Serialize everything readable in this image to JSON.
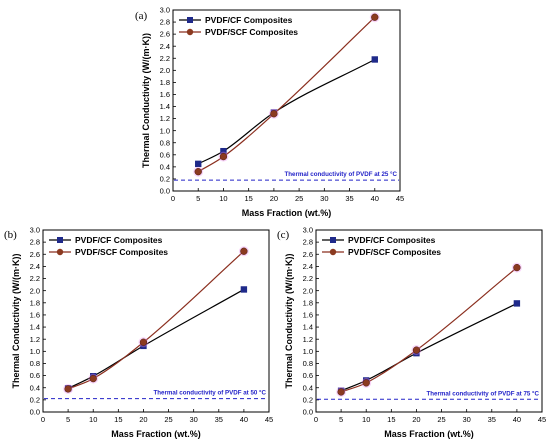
{
  "colors": {
    "cf": "#000000",
    "cf_marker": "#1f2a8a",
    "scf": "#8b2f1f",
    "scf_marker": "#8b3a20",
    "reference": "#2323c8",
    "error_glow": "#ee88ee"
  },
  "chart_data": [
    {
      "type": "line",
      "panel_label": "(a)",
      "xlabel": "Mass Fraction (wt.%)",
      "ylabel": "Thermal Conductivity (W/(m·K))",
      "xlim": [
        0,
        45
      ],
      "ylim": [
        0.0,
        3.0
      ],
      "x_ticks": [
        0,
        5,
        10,
        15,
        20,
        25,
        30,
        35,
        40,
        45
      ],
      "y_ticks": [
        0.0,
        0.2,
        0.4,
        0.6,
        0.8,
        1.0,
        1.2,
        1.4,
        1.6,
        1.8,
        2.0,
        2.2,
        2.4,
        2.6,
        2.8,
        3.0
      ],
      "legend_position": "top-left",
      "reference_line": {
        "y": 0.18,
        "label": "Thermal conductivity of PVDF at 25 °C"
      },
      "series": [
        {
          "name": "PVDF/CF Composites",
          "marker": "square",
          "x": [
            5,
            10,
            20,
            40
          ],
          "y": [
            0.45,
            0.66,
            1.3,
            2.18
          ]
        },
        {
          "name": "PVDF/SCF Composites",
          "marker": "circle",
          "x": [
            5,
            10,
            20,
            40
          ],
          "y": [
            0.32,
            0.57,
            1.28,
            2.88
          ]
        }
      ]
    },
    {
      "type": "line",
      "panel_label": "(b)",
      "xlabel": "Mass Fraction (wt.%)",
      "ylabel": "Thermal Conductivity (W/(m·K))",
      "xlim": [
        0,
        45
      ],
      "ylim": [
        0.0,
        3.0
      ],
      "x_ticks": [
        0,
        5,
        10,
        15,
        20,
        25,
        30,
        35,
        40,
        45
      ],
      "y_ticks": [
        0.0,
        0.2,
        0.4,
        0.6,
        0.8,
        1.0,
        1.2,
        1.4,
        1.6,
        1.8,
        2.0,
        2.2,
        2.4,
        2.6,
        2.8,
        3.0
      ],
      "legend_position": "top-left",
      "reference_line": {
        "y": 0.22,
        "label": "Thermal conductivity of PVDF at 50 °C"
      },
      "series": [
        {
          "name": "PVDF/CF Composites",
          "marker": "square",
          "x": [
            5,
            10,
            20,
            40
          ],
          "y": [
            0.39,
            0.59,
            1.09,
            2.02
          ]
        },
        {
          "name": "PVDF/SCF Composites",
          "marker": "circle",
          "x": [
            5,
            10,
            20,
            40
          ],
          "y": [
            0.38,
            0.55,
            1.15,
            2.65
          ]
        }
      ]
    },
    {
      "type": "line",
      "panel_label": "(c)",
      "xlabel": "Mass Fraction (wt.%)",
      "ylabel": "Thermal Conductivity (W/(m·K))",
      "xlim": [
        0,
        45
      ],
      "ylim": [
        0.0,
        3.0
      ],
      "x_ticks": [
        0,
        5,
        10,
        15,
        20,
        25,
        30,
        35,
        40,
        45
      ],
      "y_ticks": [
        0.0,
        0.2,
        0.4,
        0.6,
        0.8,
        1.0,
        1.2,
        1.4,
        1.6,
        1.8,
        2.0,
        2.2,
        2.4,
        2.6,
        2.8,
        3.0
      ],
      "legend_position": "top-left",
      "reference_line": {
        "y": 0.21,
        "label": "Thermal conductivity of PVDF at 75 °C"
      },
      "series": [
        {
          "name": "PVDF/CF Composites",
          "marker": "square",
          "x": [
            5,
            10,
            20,
            40
          ],
          "y": [
            0.35,
            0.52,
            0.97,
            1.79
          ]
        },
        {
          "name": "PVDF/SCF Composites",
          "marker": "circle",
          "x": [
            5,
            10,
            20,
            40
          ],
          "y": [
            0.33,
            0.48,
            1.02,
            2.38
          ]
        }
      ]
    }
  ]
}
